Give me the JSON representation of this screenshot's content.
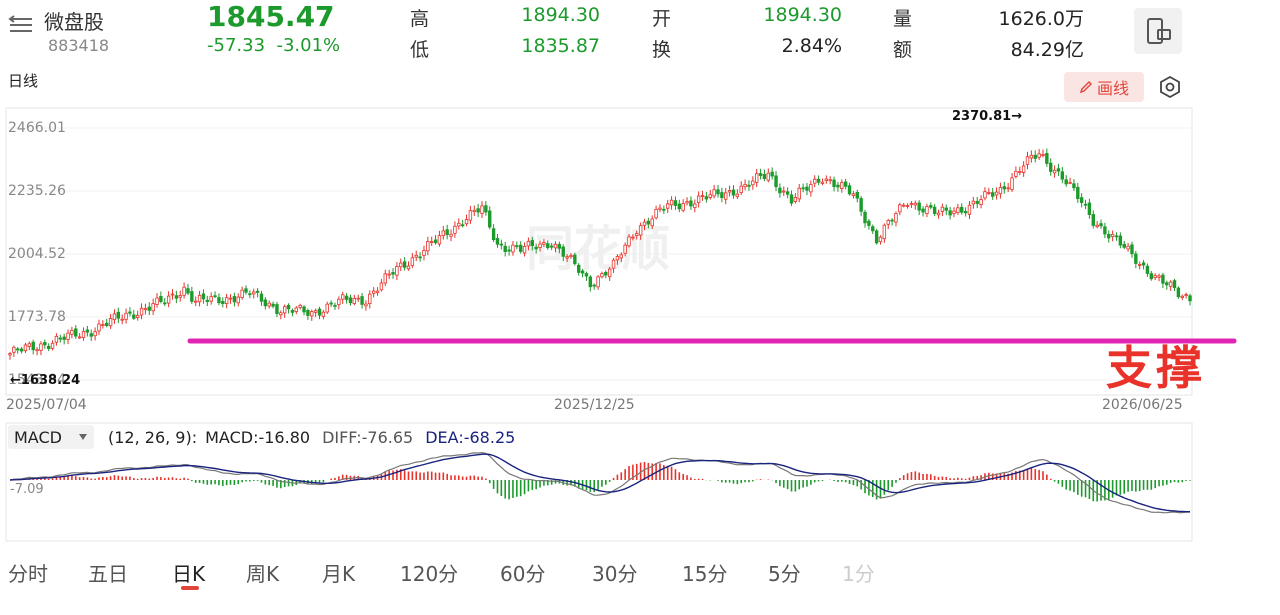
{
  "header": {
    "name": "微盘股",
    "code": "883418",
    "price": "1845.47",
    "change": "-57.33",
    "change_pct": "-3.01%",
    "high_label": "高",
    "high": "1894.30",
    "low_label": "低",
    "low": "1835.87",
    "open_label": "开",
    "open": "1894.30",
    "turnover_label": "换",
    "turnover": "2.84%",
    "volume_label": "量",
    "volume": "1626.0万",
    "amount_label": "额",
    "amount": "84.29亿"
  },
  "toolbar": {
    "period": "日线",
    "draw_label": "画线"
  },
  "chart_data": {
    "type": "candlestick",
    "y_ticks": [
      "2466.01",
      "2235.26",
      "2004.52",
      "1773.78",
      "1543.04"
    ],
    "x_ticks": [
      "2025/07/04",
      "2025/12/25",
      "2026/06/25"
    ],
    "high_annotation": "2370.81",
    "low_annotation": "1638.24",
    "support_label": "支撑",
    "support_level": 1730,
    "close_path": [
      {
        "i": 0,
        "v": 1640
      },
      {
        "i": 10,
        "v": 1680
      },
      {
        "i": 20,
        "v": 1720
      },
      {
        "i": 30,
        "v": 1780
      },
      {
        "i": 40,
        "v": 1830
      },
      {
        "i": 45,
        "v": 1880
      },
      {
        "i": 48,
        "v": 1830
      },
      {
        "i": 55,
        "v": 1840
      },
      {
        "i": 62,
        "v": 1860
      },
      {
        "i": 70,
        "v": 1800
      },
      {
        "i": 78,
        "v": 1790
      },
      {
        "i": 85,
        "v": 1830
      },
      {
        "i": 92,
        "v": 1840
      },
      {
        "i": 100,
        "v": 1950
      },
      {
        "i": 110,
        "v": 2050
      },
      {
        "i": 118,
        "v": 2140
      },
      {
        "i": 122,
        "v": 2170
      },
      {
        "i": 126,
        "v": 2040
      },
      {
        "i": 132,
        "v": 2020
      },
      {
        "i": 140,
        "v": 2050
      },
      {
        "i": 150,
        "v": 1900
      },
      {
        "i": 156,
        "v": 1960
      },
      {
        "i": 162,
        "v": 2100
      },
      {
        "i": 170,
        "v": 2180
      },
      {
        "i": 180,
        "v": 2210
      },
      {
        "i": 190,
        "v": 2250
      },
      {
        "i": 196,
        "v": 2300
      },
      {
        "i": 202,
        "v": 2200
      },
      {
        "i": 210,
        "v": 2290
      },
      {
        "i": 218,
        "v": 2220
      },
      {
        "i": 224,
        "v": 2060
      },
      {
        "i": 232,
        "v": 2200
      },
      {
        "i": 240,
        "v": 2150
      },
      {
        "i": 248,
        "v": 2180
      },
      {
        "i": 256,
        "v": 2240
      },
      {
        "i": 262,
        "v": 2330
      },
      {
        "i": 266,
        "v": 2370
      },
      {
        "i": 272,
        "v": 2290
      },
      {
        "i": 280,
        "v": 2130
      },
      {
        "i": 290,
        "v": 2000
      },
      {
        "i": 296,
        "v": 1920
      },
      {
        "i": 302,
        "v": 1860
      },
      {
        "i": 305,
        "v": 1845
      }
    ],
    "macd": {
      "params": "(12, 26, 9):",
      "macd": "MACD:-16.80",
      "diff": "DIFF:-76.65",
      "dea": "DEA:-68.25",
      "axis_label": "-7.09",
      "diff_color": "#777777",
      "dea_color": "#1a237e"
    }
  },
  "tabs": [
    "分时",
    "五日",
    "日K",
    "周K",
    "月K",
    "120分",
    "60分",
    "30分",
    "15分",
    "5分",
    "1分"
  ],
  "colors": {
    "up": "#e8322a",
    "down": "#1c9a2c",
    "support_line": "#e024b4",
    "accent": "#e0453b"
  }
}
